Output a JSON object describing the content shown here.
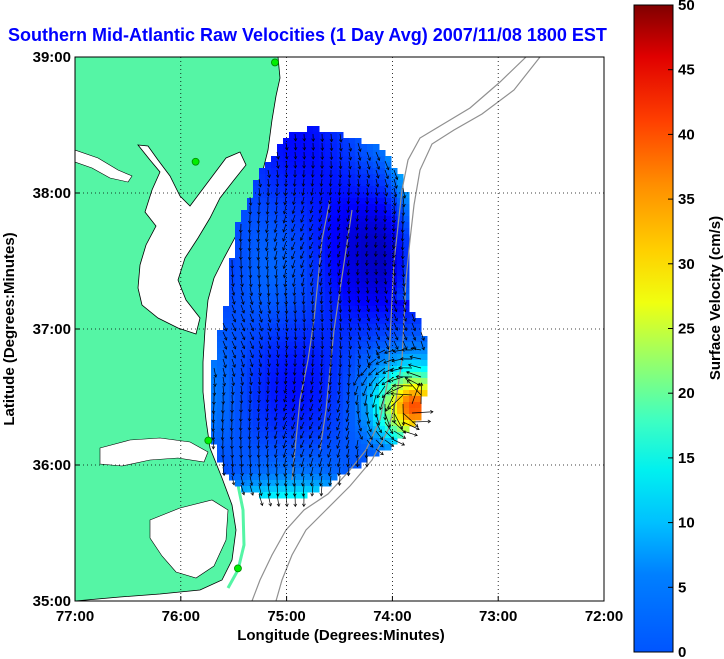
{
  "chart_data": {
    "type": "heatmap",
    "title": "Southern Mid-Atlantic Raw Velocities (1 Day Avg) 2007/11/08 1800 EST",
    "xlabel": "Longitude (Degrees:Minutes)",
    "ylabel": "Latitude (Degrees:Minutes)",
    "xlim": [
      -77,
      -72
    ],
    "ylim": [
      35,
      39
    ],
    "x_ticks": [
      {
        "value": -77,
        "label": "77:00"
      },
      {
        "value": -76,
        "label": "76:00"
      },
      {
        "value": -75,
        "label": "75:00"
      },
      {
        "value": -74,
        "label": "74:00"
      },
      {
        "value": -73,
        "label": "73:00"
      },
      {
        "value": -72,
        "label": "72:00"
      }
    ],
    "y_ticks": [
      {
        "value": 35,
        "label": "35:00"
      },
      {
        "value": 36,
        "label": "36:00"
      },
      {
        "value": 37,
        "label": "37:00"
      },
      {
        "value": 38,
        "label": "38:00"
      },
      {
        "value": 39,
        "label": "39:00"
      }
    ],
    "grid": true,
    "grid_style": "dotted",
    "colorbar": {
      "label": "Surface Velocity (cm/s)",
      "range": [
        0,
        50
      ],
      "ticks": [
        0,
        5,
        10,
        15,
        20,
        25,
        30,
        35,
        40,
        45,
        50
      ],
      "colormap": "jet"
    },
    "colors": {
      "land": "#55f5a5",
      "title": "#0000ff",
      "station": "#00ee00",
      "bathymetry": "#909090",
      "arrow": "#000000"
    },
    "stations": [
      {
        "lon": -75.11,
        "lat": 38.96
      },
      {
        "lon": -75.86,
        "lat": 38.23
      },
      {
        "lon": -75.74,
        "lat": 36.18
      },
      {
        "lon": -75.46,
        "lat": 35.24
      }
    ],
    "velocity_field": {
      "typical_speed_cms": [
        5,
        15
      ],
      "max_speed_cms": 45,
      "high_speed_region": {
        "lon": -73.82,
        "lat": 36.45,
        "speed_cms": 40
      },
      "low_speed_core": {
        "lon": -74.45,
        "lat": 37.6,
        "speed_cms": 4
      }
    }
  }
}
